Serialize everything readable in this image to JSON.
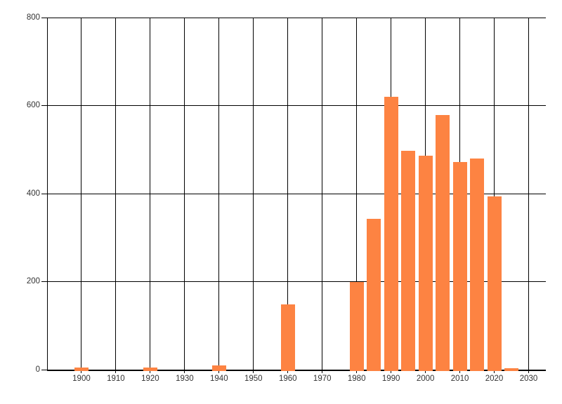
{
  "chart_data": {
    "type": "bar",
    "x": [
      1900,
      1920,
      1940,
      1960,
      1980,
      1985,
      1990,
      1995,
      2000,
      2005,
      2010,
      2015,
      2020,
      2025
    ],
    "values": [
      5,
      5,
      10,
      149,
      200,
      343,
      620,
      497,
      486,
      578,
      471,
      479,
      393,
      4
    ],
    "title": "",
    "xlabel": "",
    "ylabel": "",
    "xlim": [
      1890,
      2035
    ],
    "ylim": [
      0,
      800
    ],
    "x_ticks": [
      1900,
      1910,
      1920,
      1930,
      1940,
      1950,
      1960,
      1970,
      1980,
      1990,
      2000,
      2010,
      2020,
      2030
    ],
    "y_ticks": [
      0,
      200,
      400,
      600,
      800
    ],
    "grid": true,
    "legend_position": "none",
    "bar_color": "#fd8342",
    "bar_width_years": 4.1,
    "line_color": "#000000",
    "tick_label_color": "#333333",
    "background_color": "#ffffff"
  }
}
